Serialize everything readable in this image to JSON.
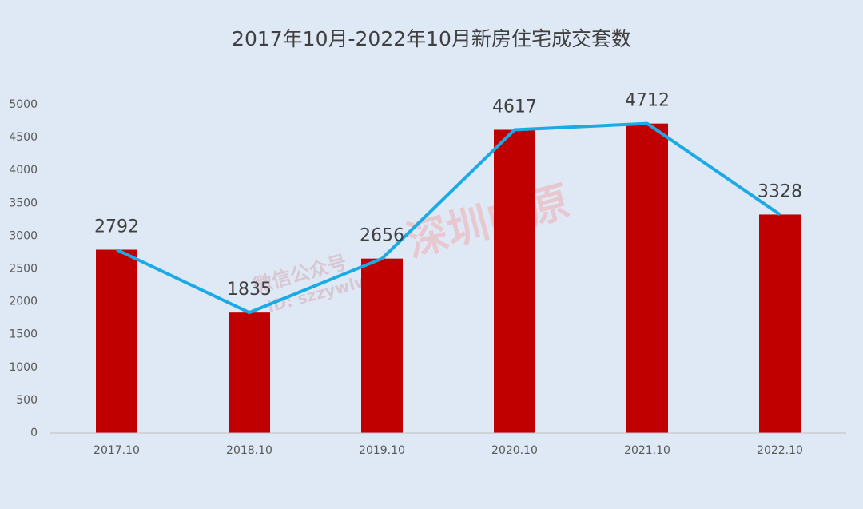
{
  "chart_data": {
    "type": "bar",
    "title": "2017年10月-2022年10月新房住宅成交套数",
    "categories": [
      "2017.10",
      "2018.10",
      "2019.10",
      "2020.10",
      "2021.10",
      "2022.10"
    ],
    "values": [
      2792,
      1835,
      2656,
      4617,
      4712,
      3328
    ],
    "color": "#c00000",
    "line_overlay_color": "#1aabe6",
    "ylim": [
      0,
      5000
    ],
    "yticks": [
      0,
      500,
      1000,
      1500,
      2000,
      2500,
      3000,
      3500,
      4000,
      4500,
      5000
    ],
    "grid": false,
    "watermark": [
      "微信公众号",
      "ID: szzywlw",
      "深圳中原"
    ]
  }
}
